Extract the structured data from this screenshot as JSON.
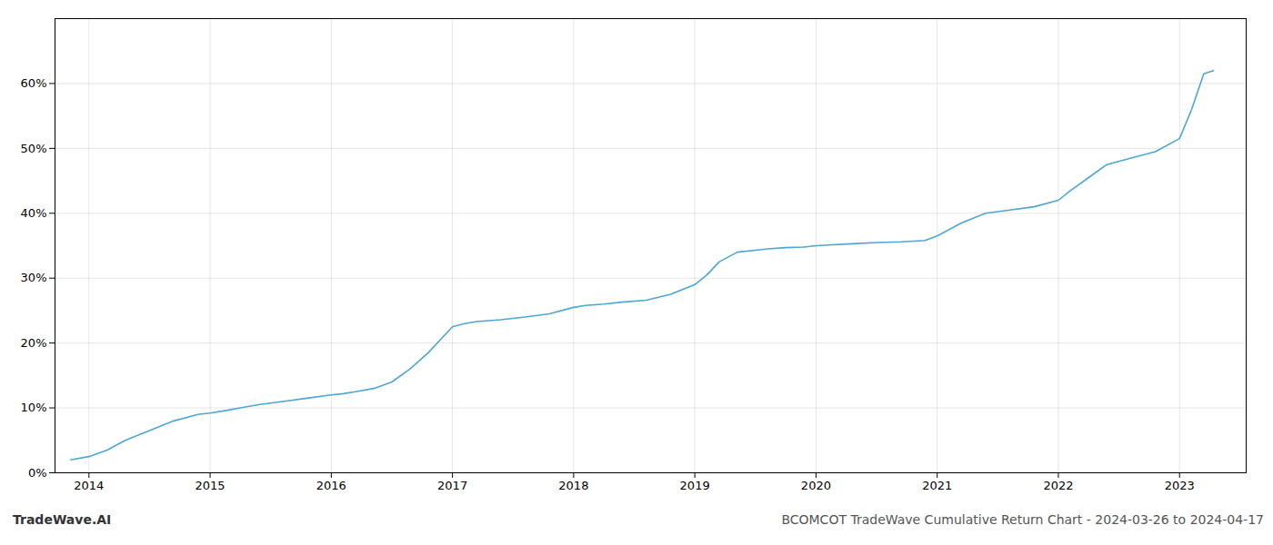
{
  "chart_data": {
    "type": "line",
    "title": "BCOMCOT TradeWave Cumulative Return Chart - 2024-03-26 to 2024-04-17",
    "annotations": [
      "TradeWave.AI"
    ],
    "color": "#4da6d4",
    "x": [
      2013.85,
      2014.0,
      2014.15,
      2014.3,
      2014.5,
      2014.7,
      2014.9,
      2015.0,
      2015.1,
      2015.25,
      2015.4,
      2015.6,
      2015.8,
      2016.0,
      2016.1,
      2016.2,
      2016.35,
      2016.5,
      2016.65,
      2016.8,
      2016.9,
      2017.0,
      2017.1,
      2017.2,
      2017.4,
      2017.6,
      2017.8,
      2018.0,
      2018.1,
      2018.25,
      2018.4,
      2018.6,
      2018.8,
      2019.0,
      2019.1,
      2019.2,
      2019.35,
      2019.5,
      2019.6,
      2019.75,
      2019.9,
      2020.0,
      2020.1,
      2020.3,
      2020.5,
      2020.7,
      2020.9,
      2021.0,
      2021.2,
      2021.4,
      2021.6,
      2021.8,
      2022.0,
      2022.1,
      2022.25,
      2022.4,
      2022.6,
      2022.8,
      2023.0,
      2023.1,
      2023.2,
      2023.28
    ],
    "values": [
      2.0,
      2.5,
      3.5,
      5.0,
      6.5,
      8.0,
      9.0,
      9.2,
      9.5,
      10.0,
      10.5,
      11.0,
      11.5,
      12.0,
      12.2,
      12.5,
      13.0,
      14.0,
      16.0,
      18.5,
      20.5,
      22.5,
      23.0,
      23.3,
      23.6,
      24.0,
      24.5,
      25.5,
      25.8,
      26.0,
      26.3,
      26.6,
      27.5,
      29.0,
      30.5,
      32.5,
      34.0,
      34.3,
      34.5,
      34.7,
      34.8,
      35.0,
      35.1,
      35.3,
      35.5,
      35.6,
      35.8,
      36.5,
      38.5,
      40.0,
      40.5,
      41.0,
      42.0,
      43.5,
      45.5,
      47.5,
      48.5,
      49.5,
      51.5,
      56.0,
      61.5,
      62.0
    ],
    "xlim": [
      2013.72,
      2023.55
    ],
    "xticks": [
      2014,
      2015,
      2016,
      2017,
      2018,
      2019,
      2020,
      2021,
      2022,
      2023
    ],
    "ylim": [
      0,
      70
    ],
    "yticks": [
      {
        "value": 0,
        "label": "0%"
      },
      {
        "value": 10,
        "label": "10%"
      },
      {
        "value": 20,
        "label": "20%"
      },
      {
        "value": 30,
        "label": "30%"
      },
      {
        "value": 40,
        "label": "40%"
      },
      {
        "value": 50,
        "label": "50%"
      },
      {
        "value": 60,
        "label": "60%"
      }
    ],
    "grid": true
  }
}
